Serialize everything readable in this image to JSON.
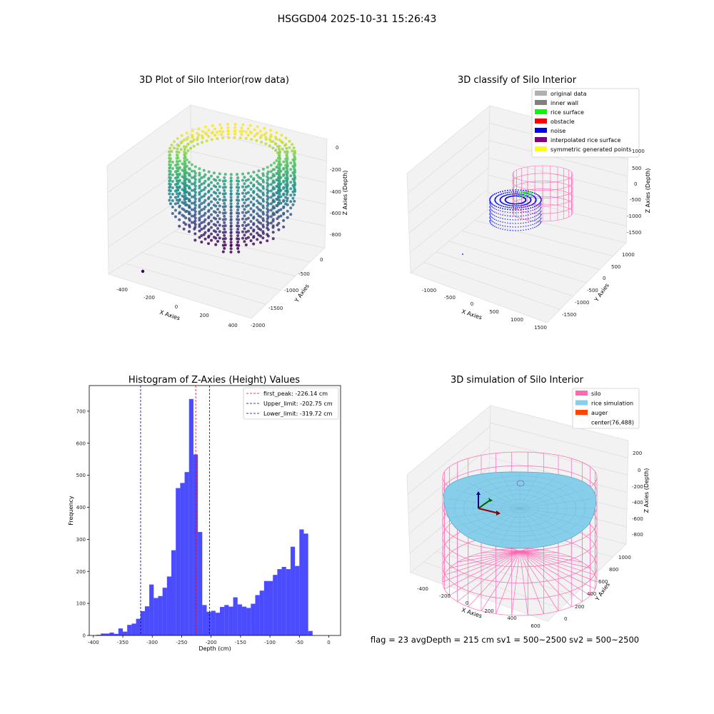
{
  "figure": {
    "suptitle": "HSGGD04 2025-10-31 15:26:43",
    "footer": "flag = 23   avgDepth = 215 cm   sv1 = 500~2500   sv2 = 500~2500"
  },
  "colors": {
    "hist_bar": "#0000ff",
    "first_peak": "#ff0000",
    "limit_line": "#00008b",
    "silo_wire": "#ff69b4",
    "rice_fill": "#87ceeb",
    "noise": "#0000ff",
    "rice_surface": "#00ff00"
  },
  "chart_data": [
    {
      "type": "scatter",
      "subtype": "3d",
      "title": "3D Plot of Silo Interior(row data)",
      "xlabel": "X Axies",
      "ylabel": "Y Axies",
      "zlabel": "Z Axies (Depth)",
      "x_ticks": [
        "-400",
        "-200",
        "0",
        "200",
        "400"
      ],
      "y_ticks": [
        "0",
        "-500",
        "-1000",
        "-1500",
        "-2000"
      ],
      "z_ticks": [
        "0",
        "-200",
        "-400",
        "-600",
        "-800"
      ],
      "colormap": "viridis",
      "grid": true
    },
    {
      "type": "scatter",
      "subtype": "3d",
      "title": "3D classify of Silo Interior",
      "xlabel": "X Axies",
      "ylabel": "Y Axies",
      "zlabel": "Z Axies (Depth)",
      "x_ticks": [
        "-1000",
        "-500",
        "0",
        "500",
        "1000",
        "1500"
      ],
      "y_ticks": [
        "1000",
        "500",
        "0",
        "-500",
        "-1000",
        "-1500"
      ],
      "z_ticks": [
        "1000",
        "500",
        "0",
        "-500",
        "-1000",
        "-1500"
      ],
      "legend_position": "top-right",
      "legend": [
        {
          "label": "original data",
          "color": "#b0b0b0"
        },
        {
          "label": "inner wall",
          "color": "#808080"
        },
        {
          "label": "rice surface",
          "color": "#00ff00"
        },
        {
          "label": "obstacle",
          "color": "#ff0000"
        },
        {
          "label": "noise",
          "color": "#0000ff"
        },
        {
          "label": "interpolated rice surface",
          "color": "#800080"
        },
        {
          "label": "symmetric generated points",
          "color": "#ffff00"
        }
      ],
      "grid": true
    },
    {
      "type": "bar",
      "subtype": "histogram",
      "title": "Histogram of Z-Axies (Height) Values",
      "xlabel": "Depth (cm)",
      "ylabel": "Frequency",
      "x_ticks": [
        -400,
        -350,
        -300,
        -250,
        -200,
        -150,
        -100,
        -50,
        0
      ],
      "y_ticks": [
        0,
        100,
        200,
        300,
        400,
        500,
        600,
        700
      ],
      "xlim": [
        -407,
        20
      ],
      "ylim": [
        0,
        780
      ],
      "bin_width": 7.5,
      "bins": [
        {
          "x": -395.0,
          "count": 2
        },
        {
          "x": -387.5,
          "count": 6
        },
        {
          "x": -380.0,
          "count": 6
        },
        {
          "x": -372.5,
          "count": 9
        },
        {
          "x": -365.0,
          "count": 5
        },
        {
          "x": -357.5,
          "count": 22
        },
        {
          "x": -350.0,
          "count": 12
        },
        {
          "x": -342.5,
          "count": 33
        },
        {
          "x": -335.0,
          "count": 37
        },
        {
          "x": -327.5,
          "count": 52
        },
        {
          "x": -320.0,
          "count": 76
        },
        {
          "x": -312.5,
          "count": 91
        },
        {
          "x": -305.0,
          "count": 159
        },
        {
          "x": -297.5,
          "count": 117
        },
        {
          "x": -290.0,
          "count": 123
        },
        {
          "x": -282.5,
          "count": 149
        },
        {
          "x": -275.0,
          "count": 184
        },
        {
          "x": -267.5,
          "count": 266
        },
        {
          "x": -260.0,
          "count": 460
        },
        {
          "x": -252.5,
          "count": 476
        },
        {
          "x": -245.0,
          "count": 510
        },
        {
          "x": -237.5,
          "count": 738
        },
        {
          "x": -230.0,
          "count": 565
        },
        {
          "x": -222.5,
          "count": 323
        },
        {
          "x": -215.0,
          "count": 95
        },
        {
          "x": -207.5,
          "count": 74
        },
        {
          "x": -200.0,
          "count": 77
        },
        {
          "x": -192.5,
          "count": 71
        },
        {
          "x": -185.0,
          "count": 89
        },
        {
          "x": -177.5,
          "count": 95
        },
        {
          "x": -170.0,
          "count": 90
        },
        {
          "x": -162.5,
          "count": 119
        },
        {
          "x": -155.0,
          "count": 97
        },
        {
          "x": -147.5,
          "count": 90
        },
        {
          "x": -140.0,
          "count": 86
        },
        {
          "x": -132.5,
          "count": 99
        },
        {
          "x": -125.0,
          "count": 126
        },
        {
          "x": -117.5,
          "count": 140
        },
        {
          "x": -110.0,
          "count": 170
        },
        {
          "x": -102.5,
          "count": 170
        },
        {
          "x": -95.0,
          "count": 189
        },
        {
          "x": -87.5,
          "count": 207
        },
        {
          "x": -80.0,
          "count": 214
        },
        {
          "x": -72.5,
          "count": 207
        },
        {
          "x": -65.0,
          "count": 277
        },
        {
          "x": -57.5,
          "count": 217
        },
        {
          "x": -50.0,
          "count": 331
        },
        {
          "x": -42.5,
          "count": 318
        },
        {
          "x": -35.0,
          "count": 14
        }
      ],
      "vlines": [
        {
          "x": -226.14,
          "label": "first_peak: -226.14 cm",
          "color": "#ff0000"
        },
        {
          "x": -202.75,
          "label": "Upper_limit: -202.75 cm",
          "color": "#00008b"
        },
        {
          "x": -319.72,
          "label": "Lower_limit: -319.72 cm",
          "color": "#00008b"
        }
      ],
      "legend_position": "top-right"
    },
    {
      "type": "surface",
      "subtype": "3d",
      "title": "3D simulation of Silo Interior",
      "xlabel": "X Axies",
      "ylabel": "Y Axies",
      "zlabel": "Z Axies (Depth)",
      "x_ticks": [
        "-400",
        "-200",
        "0",
        "200",
        "400",
        "600"
      ],
      "y_ticks": [
        "0",
        "200",
        "400",
        "600",
        "800",
        "1000"
      ],
      "z_ticks": [
        "200",
        "0",
        "-200",
        "-400",
        "-600",
        "-800"
      ],
      "legend_position": "top-right",
      "legend": [
        {
          "label": "silo",
          "color": "#ff69b4"
        },
        {
          "label": "rice simulation",
          "color": "#87ceeb"
        },
        {
          "label": "auger",
          "color": "#ff4500"
        },
        {
          "label": "center(76,488)",
          "color": ""
        }
      ],
      "grid": true
    }
  ]
}
